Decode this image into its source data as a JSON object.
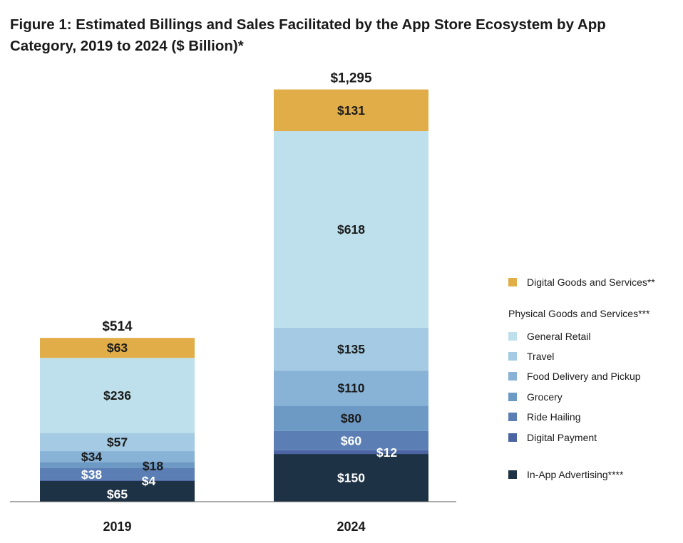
{
  "chart_data": {
    "type": "bar",
    "stacked": true,
    "title": "Figure 1: Estimated Billings and Sales Facilitated by the App Store Ecosystem by App Category, 2019 to 2024 ($ Billion)*",
    "categories": [
      "2019",
      "2024"
    ],
    "totals": [
      514,
      1295
    ],
    "total_labels": [
      "$514",
      "$1,295"
    ],
    "series": [
      {
        "name": "In-App Advertising****",
        "color": "#1e3246",
        "values": [
          65,
          150
        ],
        "labels": [
          "$65",
          "$150"
        ]
      },
      {
        "name": "Digital Payment",
        "color": "#4b65a3",
        "values": [
          4,
          12
        ],
        "labels": [
          "$4",
          "$12"
        ]
      },
      {
        "name": "Ride Hailing",
        "color": "#5b7fb5",
        "values": [
          38,
          60
        ],
        "labels": [
          "$38",
          "$60"
        ]
      },
      {
        "name": "Grocery",
        "color": "#6d9ac4",
        "values": [
          18,
          80
        ],
        "labels": [
          "$18",
          "$80"
        ]
      },
      {
        "name": "Food Delivery and Pickup",
        "color": "#88b3d7",
        "values": [
          34,
          110
        ],
        "labels": [
          "$34",
          "$110"
        ]
      },
      {
        "name": "Travel",
        "color": "#a4cbe3",
        "values": [
          57,
          135
        ],
        "labels": [
          "$57",
          "$135"
        ]
      },
      {
        "name": "General Retail",
        "color": "#bee0ec",
        "values": [
          236,
          618
        ],
        "labels": [
          "$236",
          "$618"
        ]
      },
      {
        "name": "Digital Goods and Services**",
        "color": "#e1ad48",
        "values": [
          63,
          131
        ],
        "labels": [
          "$63",
          "$131"
        ]
      }
    ],
    "legend": {
      "placement": "right",
      "group_title": "Physical Goods and Services***",
      "entries": [
        {
          "name": "Digital Goods and Services**",
          "color": "#e1ad48"
        },
        {
          "name": "General Retail",
          "color": "#bee0ec"
        },
        {
          "name": "Travel",
          "color": "#a4cbe3"
        },
        {
          "name": "Food Delivery and Pickup",
          "color": "#88b3d7"
        },
        {
          "name": "Grocery",
          "color": "#6d9ac4"
        },
        {
          "name": "Ride Hailing",
          "color": "#5b7fb5"
        },
        {
          "name": "Digital Payment",
          "color": "#4b65a3"
        },
        {
          "name": "In-App Advertising****",
          "color": "#1e3246"
        }
      ]
    },
    "grid": false
  }
}
